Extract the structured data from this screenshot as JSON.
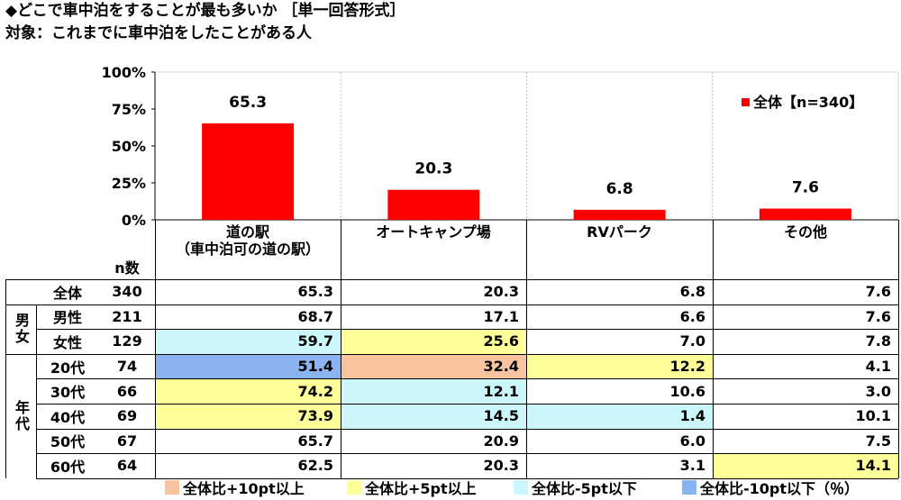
{
  "title": "◆どこで車中泊をすることが最も多いか ［単一回答形式］",
  "subtitle": "対象：これまでに車中泊をしたことがある人",
  "chart_data": {
    "type": "bar",
    "categories": [
      "道の駅（車中泊可の道の駅）",
      "オートキャンプ場",
      "RVパーク",
      "その他"
    ],
    "series": [
      {
        "name": "全体【n=340】",
        "values": [
          65.3,
          20.3,
          6.8,
          7.6
        ],
        "color": "#ff0000"
      }
    ],
    "ylim": [
      0,
      100
    ],
    "yticks": [
      "0%",
      "25%",
      "50%",
      "75%",
      "100%"
    ],
    "data_labels": [
      "65.3",
      "20.3",
      "6.8",
      "7.6"
    ],
    "legend": "全体【n=340】",
    "legend_placement": "top-right",
    "grid": "vertical dotted separators"
  },
  "table": {
    "n_header": "n数",
    "columns": [
      {
        "line1": "道の駅",
        "line2": "（車中泊可の道の駅）"
      },
      {
        "line1": "オートキャンプ場",
        "line2": ""
      },
      {
        "line1": "RVパーク",
        "line2": ""
      },
      {
        "line1": "その他",
        "line2": ""
      }
    ],
    "groups": [
      {
        "label": "",
        "rows": [
          0
        ]
      },
      {
        "label": "男女",
        "rows": [
          1,
          2
        ]
      },
      {
        "label": "年代",
        "rows": [
          3,
          4,
          5,
          6,
          7
        ]
      }
    ],
    "rows": [
      {
        "label": "全体",
        "n": "340",
        "values": [
          "65.3",
          "20.3",
          "6.8",
          "7.6"
        ],
        "highlights": [
          "",
          "",
          "",
          ""
        ]
      },
      {
        "label": "男性",
        "n": "211",
        "values": [
          "68.7",
          "17.1",
          "6.6",
          "7.6"
        ],
        "highlights": [
          "",
          "",
          "",
          ""
        ]
      },
      {
        "label": "女性",
        "n": "129",
        "values": [
          "59.7",
          "25.6",
          "7.0",
          "7.8"
        ],
        "highlights": [
          "minus5",
          "plus5",
          "",
          ""
        ]
      },
      {
        "label": "20代",
        "n": "74",
        "values": [
          "51.4",
          "32.4",
          "12.2",
          "4.1"
        ],
        "highlights": [
          "minus10",
          "plus10",
          "plus5",
          ""
        ]
      },
      {
        "label": "30代",
        "n": "66",
        "values": [
          "74.2",
          "12.1",
          "10.6",
          "3.0"
        ],
        "highlights": [
          "plus5",
          "minus5",
          "",
          ""
        ]
      },
      {
        "label": "40代",
        "n": "69",
        "values": [
          "73.9",
          "14.5",
          "1.4",
          "10.1"
        ],
        "highlights": [
          "plus5",
          "minus5",
          "minus5",
          ""
        ]
      },
      {
        "label": "50代",
        "n": "67",
        "values": [
          "65.7",
          "20.9",
          "6.0",
          "7.5"
        ],
        "highlights": [
          "",
          "",
          "",
          ""
        ]
      },
      {
        "label": "60代",
        "n": "64",
        "values": [
          "62.5",
          "20.3",
          "3.1",
          "14.1"
        ],
        "highlights": [
          "",
          "",
          "",
          "plus5"
        ]
      }
    ]
  },
  "highlight_colors": {
    "plus10": "#f8c4a0",
    "plus5": "#ffff99",
    "minus5": "#ccf7fa",
    "minus10": "#8ab4f0"
  },
  "legend_bottom": [
    {
      "key": "plus10",
      "label": "全体比+10pt以上"
    },
    {
      "key": "plus5",
      "label": "全体比+5pt以上"
    },
    {
      "key": "minus5",
      "label": "全体比-5pt以下"
    },
    {
      "key": "minus10",
      "label": "全体比-10pt以下（％）"
    }
  ]
}
